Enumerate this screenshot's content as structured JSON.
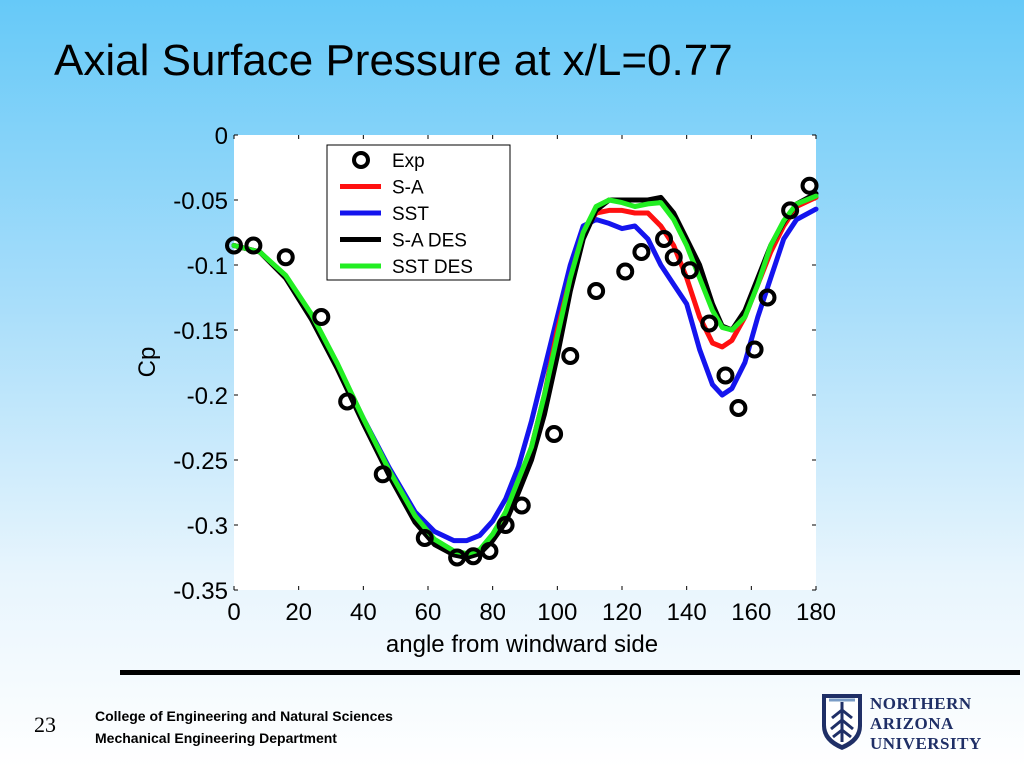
{
  "slide": {
    "title": "Axial Surface Pressure at x/L=0.77",
    "number": "23",
    "footer_line_1": "College of Engineering and Natural Sciences",
    "footer_line_2": "Mechanical Engineering Department",
    "logo_line_1": "NORTHERN",
    "logo_line_2": "ARIZONA",
    "logo_line_3": "UNIVERSITY",
    "logo_icon": "nau-shield-logo-icon",
    "colors": {
      "background_top": "#66c9f8",
      "background_bottom": "#ffffff",
      "logo_blue": "#1f2f66"
    }
  },
  "chart_data": {
    "type": "line",
    "title": "",
    "xlabel": "angle from windward side",
    "ylabel": "Cp",
    "xlim": [
      0,
      180
    ],
    "ylim": [
      -0.35,
      0
    ],
    "xticks": [
      "0",
      "20",
      "40",
      "60",
      "80",
      "100",
      "120",
      "140",
      "160",
      "180"
    ],
    "yticks": [
      "0",
      "-0.05",
      "-0.1",
      "-0.15",
      "-0.2",
      "-0.25",
      "-0.3",
      "-0.35"
    ],
    "grid": false,
    "legend_position": "top-left inside",
    "series": [
      {
        "name": "Exp",
        "style": "markers",
        "color": "#000000",
        "x": [
          0,
          6,
          16,
          27,
          35,
          46,
          59,
          69,
          74,
          79,
          84,
          89,
          99,
          104,
          112,
          121,
          126,
          133,
          136,
          141,
          147,
          152,
          156,
          161,
          165,
          172,
          178
        ],
        "y": [
          -0.085,
          -0.085,
          -0.094,
          -0.14,
          -0.205,
          -0.261,
          -0.31,
          -0.325,
          -0.324,
          -0.32,
          -0.3,
          -0.285,
          -0.23,
          -0.17,
          -0.12,
          -0.105,
          -0.09,
          -0.08,
          -0.094,
          -0.104,
          -0.145,
          -0.185,
          -0.21,
          -0.165,
          -0.125,
          -0.058,
          -0.039
        ]
      },
      {
        "name": "S-A",
        "style": "line",
        "color": "#ff1010",
        "x": [
          0,
          8,
          16,
          24,
          32,
          40,
          48,
          56,
          62,
          68,
          72,
          76,
          80,
          84,
          88,
          92,
          96,
          100,
          104,
          108,
          112,
          116,
          120,
          124,
          128,
          132,
          136,
          140,
          144,
          148,
          151,
          154,
          158,
          162,
          166,
          170,
          174,
          180
        ],
        "y": [
          -0.085,
          -0.09,
          -0.11,
          -0.14,
          -0.18,
          -0.22,
          -0.26,
          -0.295,
          -0.312,
          -0.322,
          -0.323,
          -0.32,
          -0.31,
          -0.295,
          -0.27,
          -0.24,
          -0.2,
          -0.15,
          -0.11,
          -0.075,
          -0.06,
          -0.058,
          -0.058,
          -0.06,
          -0.06,
          -0.07,
          -0.085,
          -0.11,
          -0.14,
          -0.16,
          -0.163,
          -0.158,
          -0.14,
          -0.115,
          -0.09,
          -0.07,
          -0.055,
          -0.048
        ]
      },
      {
        "name": "SST",
        "style": "line",
        "color": "#1414ee",
        "x": [
          0,
          8,
          16,
          24,
          32,
          40,
          48,
          56,
          62,
          68,
          72,
          76,
          80,
          84,
          88,
          92,
          96,
          100,
          104,
          108,
          112,
          116,
          120,
          124,
          128,
          132,
          136,
          140,
          144,
          148,
          151,
          154,
          158,
          162,
          166,
          170,
          174,
          180
        ],
        "y": [
          -0.085,
          -0.09,
          -0.11,
          -0.14,
          -0.178,
          -0.218,
          -0.256,
          -0.29,
          -0.305,
          -0.312,
          -0.312,
          -0.308,
          -0.297,
          -0.28,
          -0.255,
          -0.22,
          -0.18,
          -0.14,
          -0.1,
          -0.07,
          -0.065,
          -0.068,
          -0.072,
          -0.07,
          -0.08,
          -0.1,
          -0.115,
          -0.13,
          -0.165,
          -0.192,
          -0.2,
          -0.195,
          -0.175,
          -0.14,
          -0.11,
          -0.08,
          -0.065,
          -0.057
        ]
      },
      {
        "name": "S-A DES",
        "style": "line",
        "color": "#000000",
        "x": [
          0,
          8,
          16,
          24,
          32,
          40,
          48,
          56,
          62,
          68,
          72,
          76,
          80,
          84,
          88,
          92,
          96,
          100,
          104,
          108,
          112,
          116,
          120,
          124,
          128,
          132,
          136,
          140,
          144,
          148,
          151,
          154,
          158,
          162,
          166,
          170,
          174,
          180
        ],
        "y": [
          -0.085,
          -0.09,
          -0.11,
          -0.142,
          -0.18,
          -0.222,
          -0.262,
          -0.298,
          -0.315,
          -0.323,
          -0.325,
          -0.322,
          -0.312,
          -0.298,
          -0.275,
          -0.25,
          -0.215,
          -0.17,
          -0.12,
          -0.08,
          -0.058,
          -0.05,
          -0.05,
          -0.05,
          -0.05,
          -0.048,
          -0.06,
          -0.08,
          -0.1,
          -0.13,
          -0.147,
          -0.15,
          -0.135,
          -0.11,
          -0.085,
          -0.067,
          -0.053,
          -0.045
        ]
      },
      {
        "name": "SST DES",
        "style": "line",
        "color": "#22ee22",
        "x": [
          0,
          8,
          16,
          24,
          32,
          40,
          48,
          56,
          62,
          68,
          72,
          76,
          80,
          84,
          88,
          92,
          96,
          100,
          104,
          108,
          112,
          116,
          120,
          124,
          128,
          132,
          136,
          140,
          144,
          148,
          151,
          154,
          158,
          162,
          166,
          170,
          174,
          180
        ],
        "y": [
          -0.085,
          -0.09,
          -0.108,
          -0.138,
          -0.176,
          -0.218,
          -0.258,
          -0.293,
          -0.311,
          -0.32,
          -0.322,
          -0.319,
          -0.307,
          -0.29,
          -0.265,
          -0.24,
          -0.2,
          -0.155,
          -0.11,
          -0.075,
          -0.055,
          -0.05,
          -0.052,
          -0.055,
          -0.053,
          -0.052,
          -0.065,
          -0.085,
          -0.11,
          -0.135,
          -0.148,
          -0.15,
          -0.14,
          -0.115,
          -0.085,
          -0.066,
          -0.053,
          -0.047
        ]
      }
    ]
  }
}
